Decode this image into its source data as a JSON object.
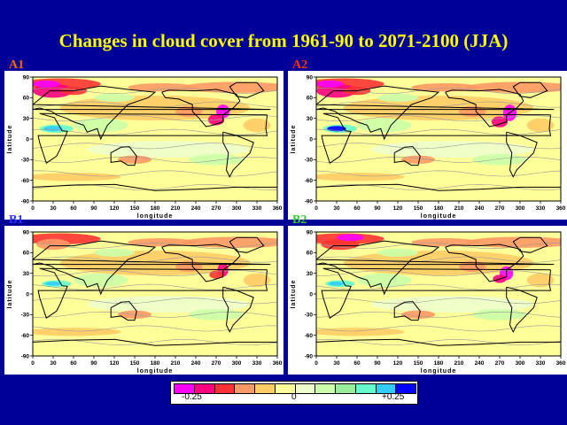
{
  "title": "Changes in cloud cover from 1961-90 to 2071-2100 (JJA)",
  "panels": [
    {
      "label": "A1",
      "label_color": "#ff6600"
    },
    {
      "label": "A2",
      "label_color": "#ff3300"
    },
    {
      "label": "B1",
      "label_color": "#3333ff"
    },
    {
      "label": "B2",
      "label_color": "#33cc33"
    }
  ],
  "axes": {
    "xlabel": "longitude",
    "ylabel": "latitude",
    "xticks": [
      "0",
      "30",
      "60",
      "90",
      "120",
      "150",
      "180",
      "210",
      "240",
      "270",
      "300",
      "330",
      "360"
    ],
    "yticks": [
      "90",
      "60",
      "30",
      "0",
      "-30",
      "-60",
      "-90"
    ]
  },
  "legend": {
    "colors": [
      "#ff00ff",
      "#ff0080",
      "#ff3333",
      "#ff9966",
      "#ffcc66",
      "#ffff99",
      "#eeffcc",
      "#ccffaa",
      "#99ee99",
      "#66ffcc",
      "#33ccff",
      "#0000ff"
    ],
    "min_label": "-0.25",
    "mid_label": "0",
    "max_label": "+0.25"
  }
}
